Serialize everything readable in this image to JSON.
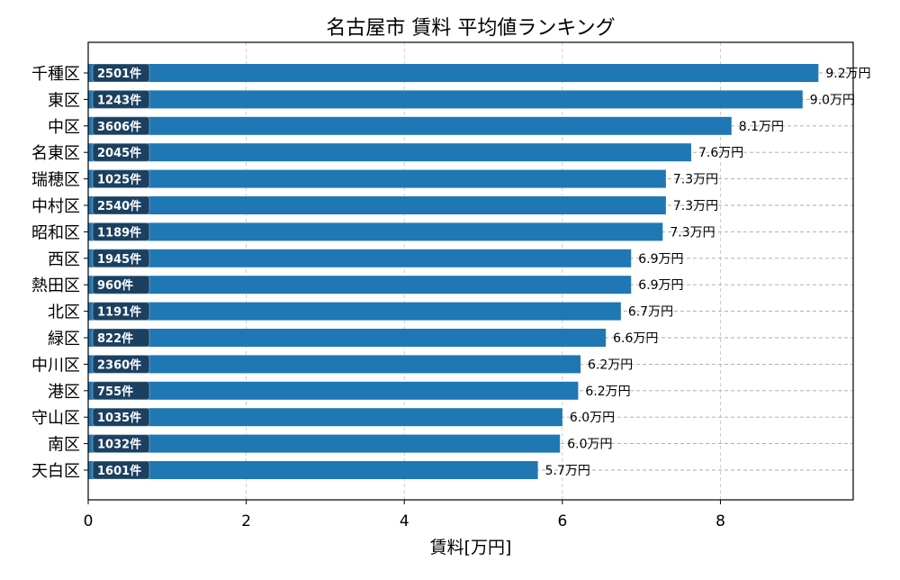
{
  "chart_data": {
    "type": "bar",
    "orientation": "horizontal",
    "title": "名古屋市 賃料 平均値ランキング",
    "xlabel": "賃料[万円]",
    "ylabel": "",
    "xlim": [
      0,
      9.68
    ],
    "xticks": [
      0,
      2,
      4,
      6,
      8
    ],
    "grid": true,
    "categories": [
      "千種区",
      "東区",
      "中区",
      "名東区",
      "瑞穂区",
      "中村区",
      "昭和区",
      "西区",
      "熱田区",
      "北区",
      "緑区",
      "中川区",
      "港区",
      "守山区",
      "南区",
      "天白区"
    ],
    "values": [
      9.24,
      9.04,
      8.14,
      7.63,
      7.31,
      7.31,
      7.27,
      6.87,
      6.87,
      6.74,
      6.55,
      6.23,
      6.2,
      6.0,
      5.97,
      5.69
    ],
    "value_labels": [
      "9.2万円",
      "9.0万円",
      "8.1万円",
      "7.6万円",
      "7.3万円",
      "7.3万円",
      "7.3万円",
      "6.9万円",
      "6.9万円",
      "6.7万円",
      "6.6万円",
      "6.2万円",
      "6.2万円",
      "6.0万円",
      "6.0万円",
      "5.7万円"
    ],
    "count_labels": [
      "2501件",
      "1243件",
      "3606件",
      "2045件",
      "1025件",
      "2540件",
      "1189件",
      "1945件",
      "960件",
      "1191件",
      "822件",
      "2360件",
      "755件",
      "1035件",
      "1032件",
      "1601件"
    ],
    "colors": {
      "bar": "#1f77b4",
      "count_box": "#1b3a57",
      "count_text": "#ffffff"
    }
  }
}
